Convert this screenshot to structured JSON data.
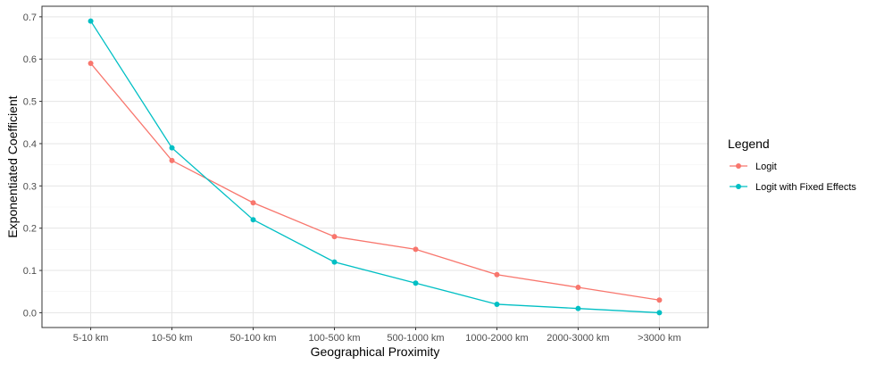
{
  "chart_data": {
    "type": "line",
    "xlabel": "Geographical Proximity",
    "ylabel": "Exponentiated Coefficient",
    "categories": [
      "5-10 km",
      "10-50 km",
      "50-100 km",
      "100-500 km",
      "500-1000 km",
      "1000-2000 km",
      "2000-3000 km",
      ">3000 km"
    ],
    "ylim": [
      -0.035,
      0.725
    ],
    "yticks": [
      0.0,
      0.1,
      0.2,
      0.3,
      0.4,
      0.5,
      0.6,
      0.7
    ],
    "ytick_labels": [
      "0.0",
      "0.1",
      "0.2",
      "0.3",
      "0.4",
      "0.5",
      "0.6",
      "0.7"
    ],
    "grid": true,
    "legend": {
      "title": "Legend",
      "position": "right"
    },
    "series": [
      {
        "name": "Logit",
        "color": "#F8766D",
        "values": [
          0.59,
          0.36,
          0.26,
          0.18,
          0.15,
          0.09,
          0.06,
          0.03
        ]
      },
      {
        "name": "Logit with Fixed Effects",
        "color": "#00BFC4",
        "values": [
          0.69,
          0.39,
          0.22,
          0.12,
          0.07,
          0.02,
          0.01,
          0.0
        ]
      }
    ]
  }
}
